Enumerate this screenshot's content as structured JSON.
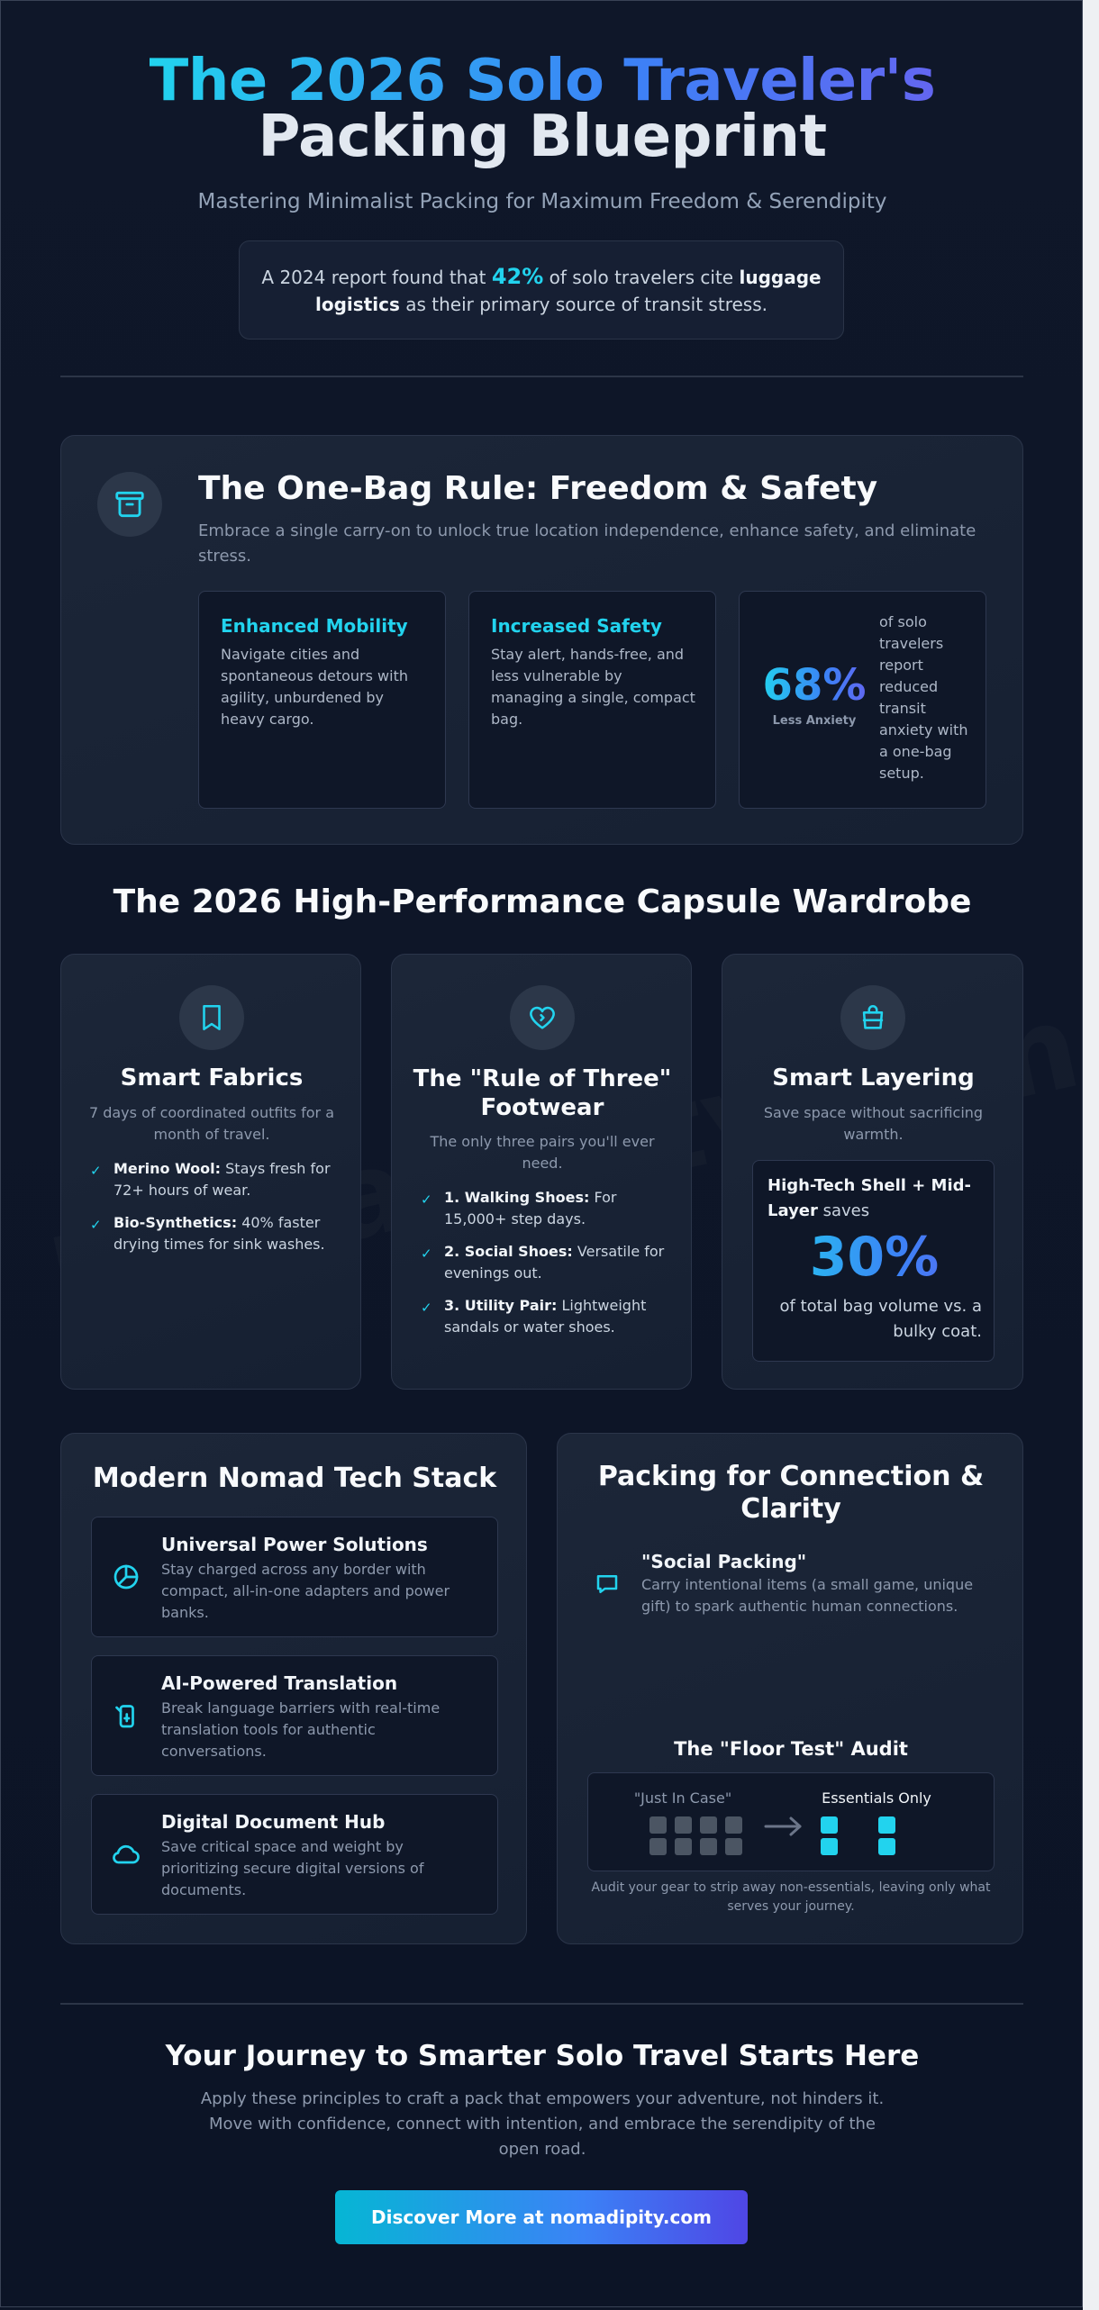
{
  "header": {
    "title_line1": "The 2026 Solo Traveler's",
    "title_line2": "Packing Blueprint",
    "subtitle": "Mastering Minimalist Packing for Maximum Freedom & Serendipity"
  },
  "intro_stat": {
    "prefix": "A 2024 report found that",
    "percent": "42%",
    "middle": "of solo travelers cite",
    "bold": "luggage logistics",
    "suffix": "as their primary source of transit stress."
  },
  "one_bag": {
    "title": "The One-Bag Rule: Freedom & Safety",
    "description": "Embrace a single carry-on to unlock true location independence, enhance safety, and eliminate stress.",
    "icon": "archive-box-icon",
    "cards": [
      {
        "title": "Enhanced Mobility",
        "text": "Navigate cities and spontaneous detours with agility, unburdened by heavy cargo."
      },
      {
        "title": "Increased Safety",
        "text": "Stay alert, hands-free, and less vulnerable by managing a single, compact bag."
      }
    ],
    "stat": {
      "value": "68%",
      "label": "Less Anxiety",
      "text": "of solo travelers report reduced transit anxiety with a one-bag setup."
    }
  },
  "wardrobe": {
    "heading": "The 2026 High-Performance Capsule Wardrobe",
    "fabrics": {
      "icon": "bookmark-icon",
      "title": "Smart Fabrics",
      "subtitle": "7 days of coordinated outfits for a month of travel.",
      "items": [
        {
          "bold": "Merino Wool:",
          "text": "Stays fresh for 72+ hours of wear."
        },
        {
          "bold": "Bio-Synthetics:",
          "text": "40% faster drying times for sink washes."
        }
      ]
    },
    "footwear": {
      "icon": "heart-icon",
      "title": "The \"Rule of Three\" Footwear",
      "subtitle": "The only three pairs you'll ever need.",
      "items": [
        {
          "bold": "1. Walking Shoes:",
          "text": "For 15,000+ step days."
        },
        {
          "bold": "2. Social Shoes:",
          "text": "Versatile for evenings out."
        },
        {
          "bold": "3. Utility Pair:",
          "text": "Lightweight sandals or water shoes."
        }
      ]
    },
    "layering": {
      "icon": "shopping-bag-icon",
      "title": "Smart Layering",
      "subtitle": "Save space without sacrificing warmth.",
      "box_bold": "High-Tech Shell + Mid-Layer",
      "box_text": "saves",
      "percent": "30%",
      "percent_value": 30,
      "box_caption": "of total bag volume vs. a bulky coat."
    }
  },
  "tech": {
    "title": "Modern Nomad Tech Stack",
    "items": [
      {
        "icon": "power-icon",
        "title": "Universal Power Solutions",
        "text": "Stay charged across any border with compact, all-in-one adapters and power banks."
      },
      {
        "icon": "translate-icon",
        "title": "AI-Powered Translation",
        "text": "Break language barriers with real-time translation tools for authentic conversations."
      },
      {
        "icon": "cloud-icon",
        "title": "Digital Document Hub",
        "text": "Save critical space and weight by prioritizing secure digital versions of documents."
      }
    ]
  },
  "connection": {
    "title": "Packing for Connection & Clarity",
    "social": {
      "icon": "chat-bubble-icon",
      "title": "\"Social Packing\"",
      "text": "Carry intentional items (a small game, unique gift) to spark authentic human connections."
    },
    "audit": {
      "title": "The \"Floor Test\" Audit",
      "before_label": "\"Just In Case\"",
      "after_label": "Essentials Only",
      "before_count": 8,
      "after_count": 4,
      "caption": "Audit your gear to strip away non-essentials, leaving only what serves your journey."
    }
  },
  "footer": {
    "title": "Your Journey to Smarter Solo Travel Starts Here",
    "text": "Apply these principles to craft a pack that empowers your adventure, not hinders it. Move with confidence, connect with intention, and embrace the serendipity of the open road.",
    "cta": "Discover More at nomadipity.com"
  },
  "watermark": "nomadipity.com",
  "colors": {
    "accent": "#22d3ee",
    "accent2": "#3b82f6",
    "indigo": "#6366f1",
    "background": "#0d1527"
  }
}
